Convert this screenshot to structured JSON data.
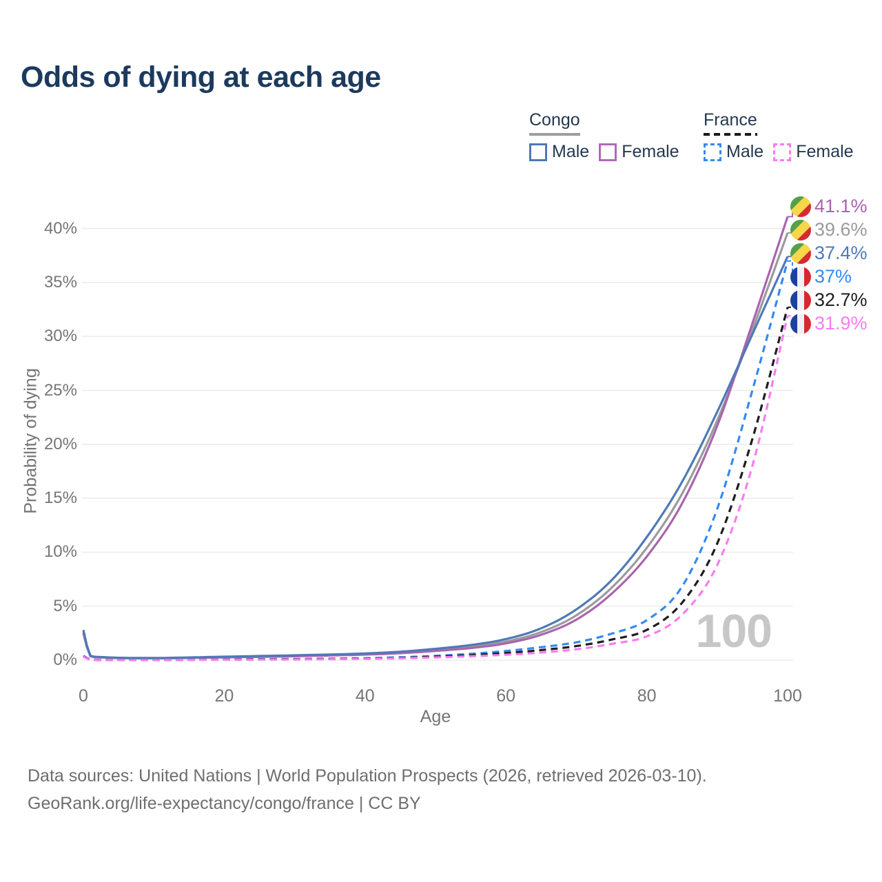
{
  "title": "Odds of dying at each age",
  "legend": {
    "groups": [
      {
        "name": "Congo",
        "line_style": "solid",
        "underline_color": "#9e9e9e",
        "items": [
          {
            "label": "Male",
            "color": "#4e79b7"
          },
          {
            "label": "Female",
            "color": "#b06ab8"
          }
        ]
      },
      {
        "name": "France",
        "line_style": "dashed",
        "underline_color": "#1a1a1a",
        "items": [
          {
            "label": "Male",
            "color": "#338af2"
          },
          {
            "label": "Female",
            "color": "#f87cf0"
          }
        ]
      }
    ]
  },
  "chart_data": {
    "type": "line",
    "title": "Odds of dying at each age",
    "xlabel": "Age",
    "ylabel": "Probability of dying",
    "xlim": [
      0,
      100
    ],
    "ylim": [
      0,
      43
    ],
    "grid": "horizontal",
    "x_ticks": [
      {
        "value": 0,
        "label": "0"
      },
      {
        "value": 20,
        "label": "20"
      },
      {
        "value": 40,
        "label": "40"
      },
      {
        "value": 60,
        "label": "60"
      },
      {
        "value": 80,
        "label": "80"
      },
      {
        "value": 100,
        "label": "100"
      }
    ],
    "y_ticks": [
      {
        "value": 0,
        "label": "0%"
      },
      {
        "value": 5,
        "label": "5%"
      },
      {
        "value": 10,
        "label": "10%"
      },
      {
        "value": 15,
        "label": "15%"
      },
      {
        "value": 20,
        "label": "20%"
      },
      {
        "value": 25,
        "label": "25%"
      },
      {
        "value": 30,
        "label": "30%"
      },
      {
        "value": 35,
        "label": "35%"
      },
      {
        "value": 40,
        "label": "40%"
      }
    ],
    "x": [
      0,
      1,
      2,
      5,
      10,
      15,
      20,
      25,
      30,
      35,
      40,
      45,
      50,
      55,
      60,
      65,
      70,
      75,
      80,
      85,
      90,
      95,
      100
    ],
    "series": [
      {
        "name": "Congo all",
        "country": "Congo",
        "flag": "congo",
        "style": "solid",
        "color": "#9b9b9b",
        "end_value": 39.6,
        "end_label": "39.6%",
        "values": [
          2.65,
          0.39,
          0.28,
          0.2,
          0.18,
          0.22,
          0.28,
          0.33,
          0.4,
          0.47,
          0.56,
          0.7,
          0.93,
          1.25,
          1.72,
          2.6,
          4.15,
          6.7,
          10.4,
          15.4,
          22.2,
          30.6,
          39.6
        ]
      },
      {
        "name": "Congo Female",
        "country": "Congo",
        "flag": "congo",
        "style": "solid",
        "color": "#a965ae",
        "end_value": 41.1,
        "end_label": "41.1%",
        "values": [
          2.5,
          0.36,
          0.26,
          0.19,
          0.17,
          0.2,
          0.25,
          0.3,
          0.36,
          0.43,
          0.51,
          0.64,
          0.85,
          1.12,
          1.55,
          2.35,
          3.75,
          6.15,
          9.6,
          14.5,
          21.7,
          31.2,
          41.1
        ]
      },
      {
        "name": "Congo Male",
        "country": "Congo",
        "flag": "congo",
        "style": "solid",
        "color": "#4e79b7",
        "end_value": 37.4,
        "end_label": "37.4%",
        "values": [
          2.8,
          0.42,
          0.3,
          0.22,
          0.2,
          0.25,
          0.32,
          0.38,
          0.45,
          0.52,
          0.62,
          0.78,
          1.05,
          1.4,
          1.95,
          2.95,
          4.7,
          7.4,
          11.4,
          16.5,
          23.0,
          30.2,
          37.4
        ]
      },
      {
        "name": "France Male",
        "country": "France",
        "flag": "france",
        "style": "dashed",
        "color": "#338af2",
        "end_value": 37.0,
        "end_label": "37%",
        "values": [
          0.4,
          0.05,
          0.03,
          0.02,
          0.02,
          0.04,
          0.07,
          0.09,
          0.11,
          0.14,
          0.18,
          0.26,
          0.4,
          0.58,
          0.85,
          1.2,
          1.65,
          2.45,
          3.7,
          6.8,
          14.0,
          25.0,
          37.0
        ]
      },
      {
        "name": "France all",
        "country": "France",
        "flag": "france",
        "style": "dashed",
        "color": "#1d1d1d",
        "end_value": 32.7,
        "end_label": "32.7%",
        "values": [
          0.36,
          0.045,
          0.027,
          0.018,
          0.018,
          0.03,
          0.05,
          0.07,
          0.09,
          0.11,
          0.15,
          0.21,
          0.32,
          0.46,
          0.66,
          0.93,
          1.3,
          1.9,
          2.8,
          5.3,
          10.8,
          20.5,
          32.7
        ]
      },
      {
        "name": "France Female",
        "country": "France",
        "flag": "france",
        "style": "dashed",
        "color": "#f87cf0",
        "end_value": 31.9,
        "end_label": "31.9%",
        "values": [
          0.33,
          0.04,
          0.022,
          0.015,
          0.015,
          0.025,
          0.04,
          0.05,
          0.065,
          0.085,
          0.12,
          0.17,
          0.25,
          0.36,
          0.5,
          0.7,
          1.0,
          1.5,
          2.2,
          4.2,
          8.8,
          18.0,
          31.9
        ]
      }
    ],
    "flag_colors": {
      "congo": {
        "green": "#55a04a",
        "yellow": "#f6d64a",
        "red": "#d52b30"
      },
      "france": {
        "blue": "#1e419d",
        "white": "#eef0f2",
        "red": "#d7282f"
      }
    }
  },
  "hover_age_indicator": "100",
  "footer": {
    "line1": "Data sources: United Nations | World Population Prospects (2026, retrieved 2026-03-10).",
    "line2": "GeoRank.org/life-expectancy/congo/france | CC BY"
  }
}
